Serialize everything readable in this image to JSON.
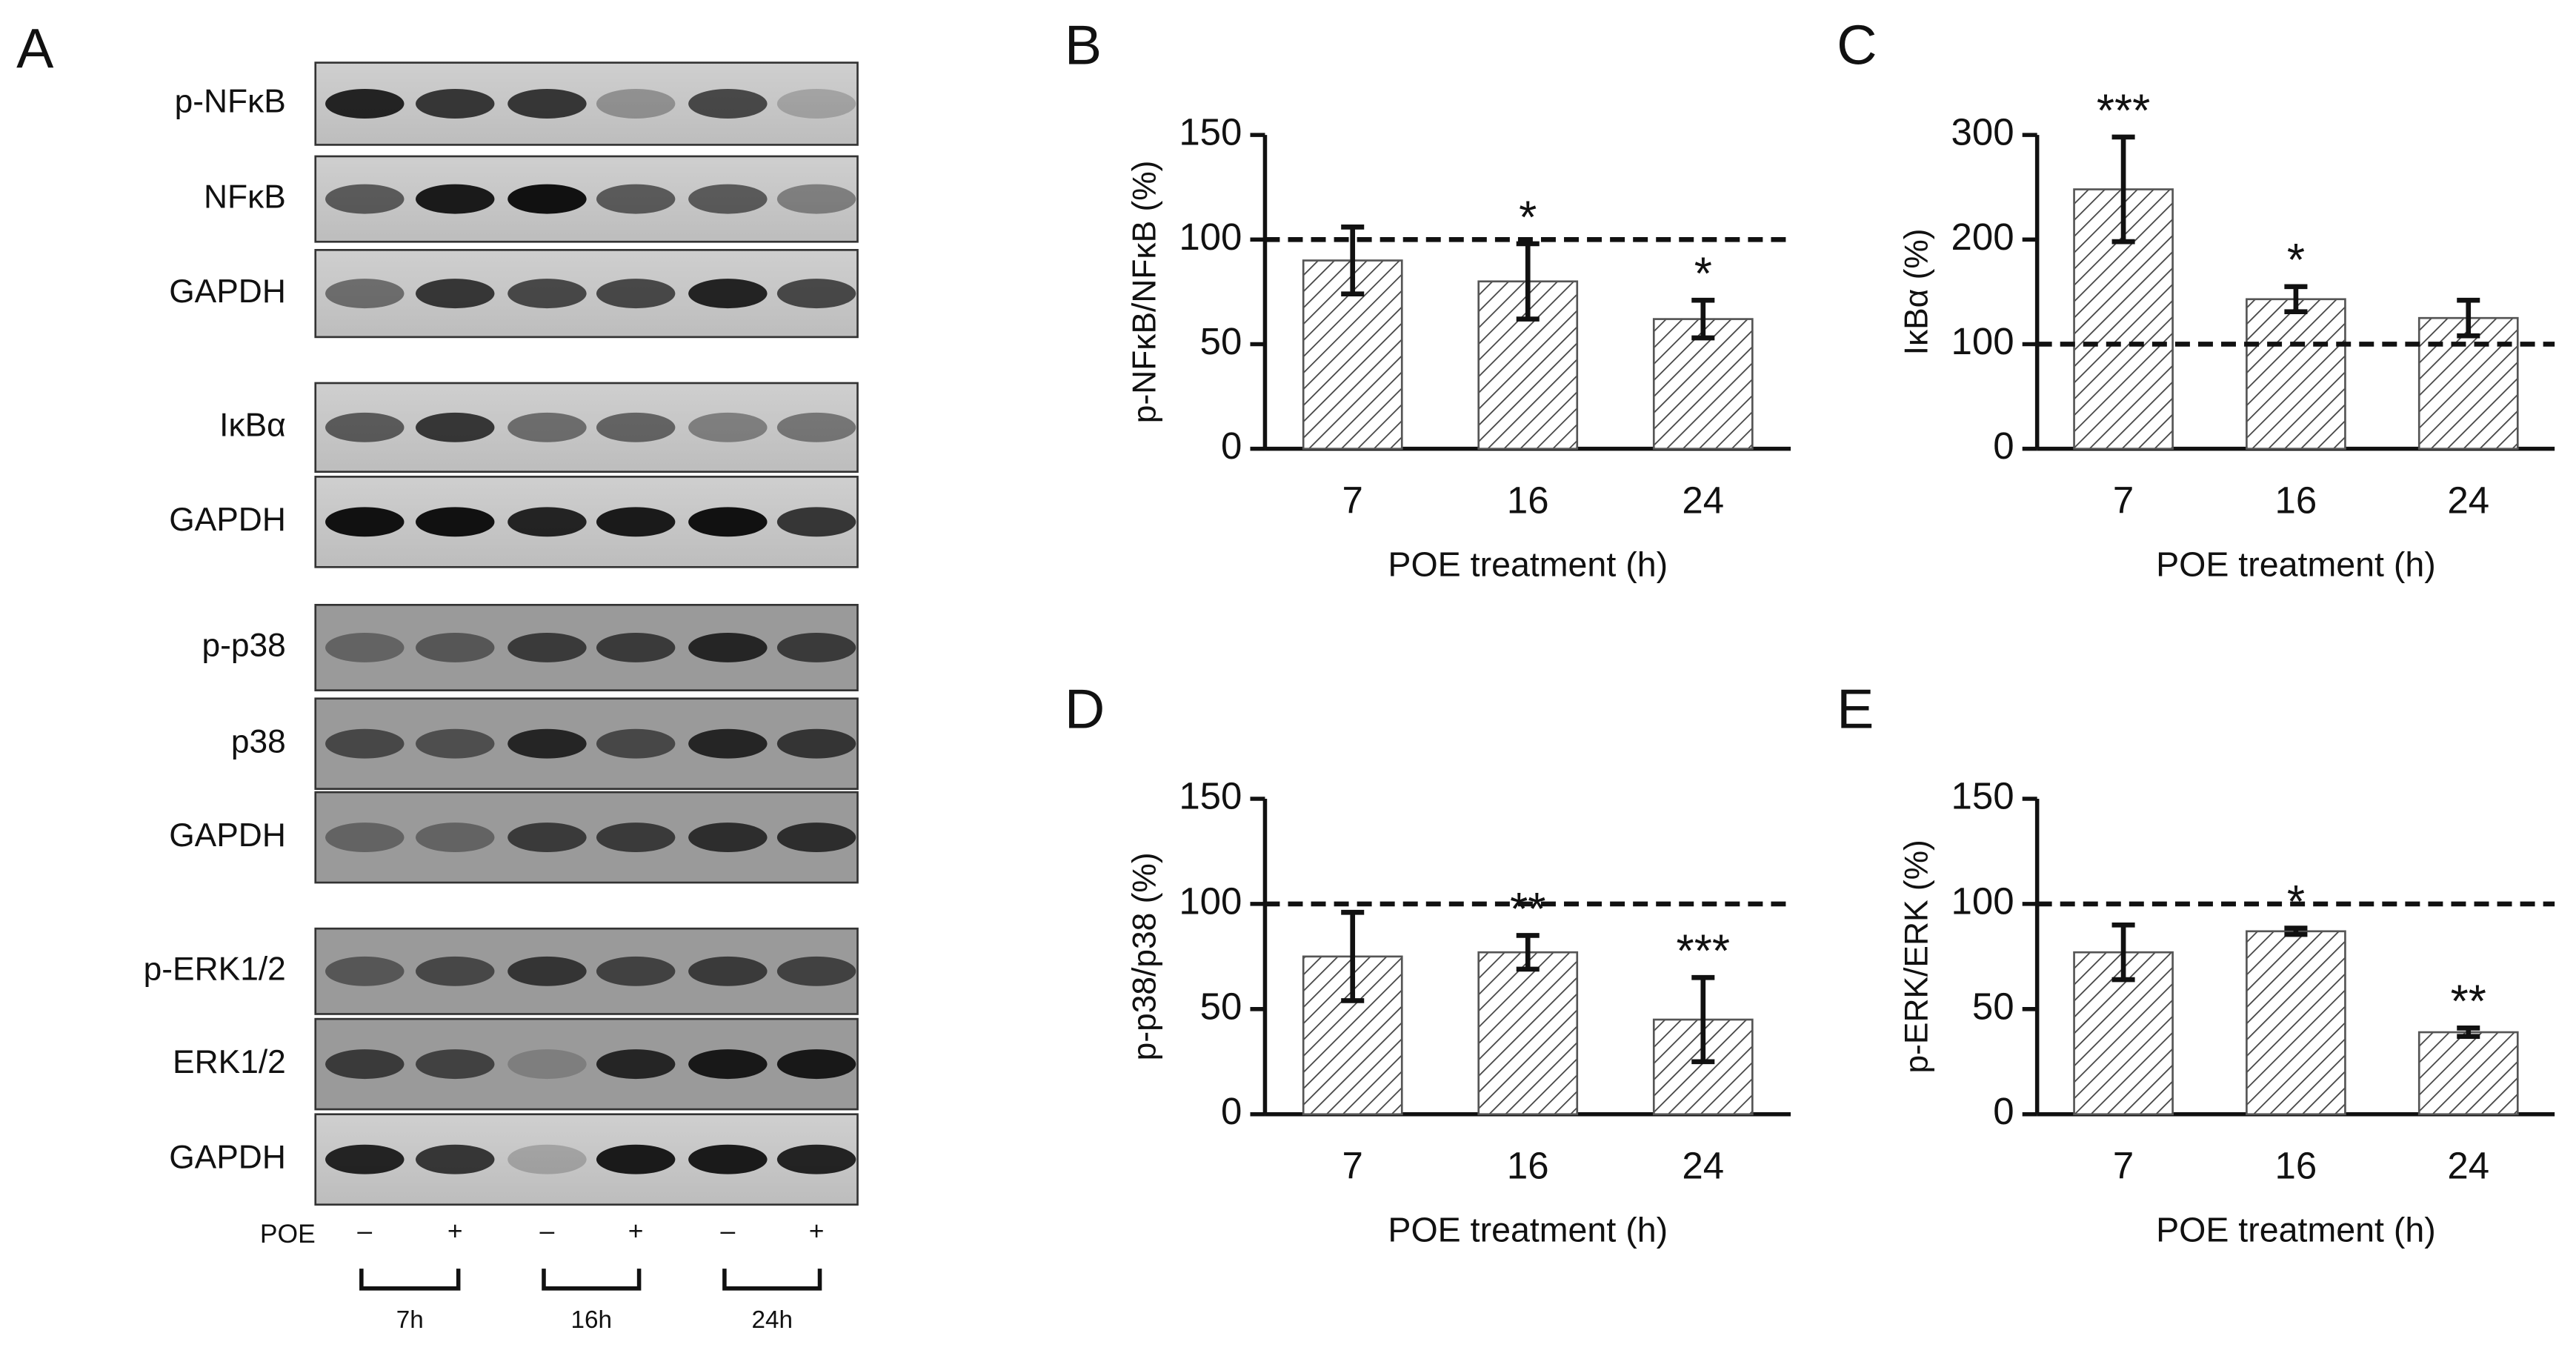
{
  "blot": {
    "panel": "A",
    "rows": [
      "p-NFκB",
      "NFκB",
      "GAPDH",
      "IκBα",
      "GAPDH",
      "p-p38",
      "p38",
      "GAPDH",
      "p-ERK1/2",
      "ERK1/2",
      "GAPDH"
    ],
    "treatment_label": "POE",
    "lanes": [
      "–",
      "+",
      "–",
      "+",
      "–",
      "+"
    ],
    "timepoints": [
      "7h",
      "16h",
      "24h"
    ]
  },
  "chart_data": [
    {
      "type": "bar",
      "panel": "B",
      "y_label": "p-NFκB/NFκB (%)",
      "x_label": "POE treatment (h)",
      "categories": [
        "7",
        "16",
        "24"
      ],
      "values": [
        90,
        80,
        62
      ],
      "errors": [
        16,
        18,
        9
      ],
      "significance": [
        null,
        "*",
        "*"
      ],
      "reference_line": 100,
      "ylim": [
        0,
        150
      ],
      "yticks": [
        0,
        50,
        100,
        150
      ]
    },
    {
      "type": "bar",
      "panel": "C",
      "y_label": "IκBα (%)",
      "x_label": "POE treatment (h)",
      "categories": [
        "7",
        "16",
        "24"
      ],
      "values": [
        248,
        143,
        125
      ],
      "errors": [
        50,
        12,
        17
      ],
      "significance": [
        "***",
        "*",
        null
      ],
      "reference_line": 100,
      "ylim": [
        0,
        300
      ],
      "yticks": [
        0,
        100,
        200,
        300
      ]
    },
    {
      "type": "bar",
      "panel": "D",
      "y_label": "p-p38/p38 (%)",
      "x_label": "POE treatment (h)",
      "categories": [
        "7",
        "16",
        "24"
      ],
      "values": [
        75,
        77,
        45
      ],
      "errors": [
        21,
        8,
        20
      ],
      "significance": [
        null,
        "**",
        "***"
      ],
      "reference_line": 100,
      "ylim": [
        0,
        150
      ],
      "yticks": [
        0,
        50,
        100,
        150
      ]
    },
    {
      "type": "bar",
      "panel": "E",
      "y_label": "p-ERK/ERK (%)",
      "x_label": "POE treatment (h)",
      "categories": [
        "7",
        "16",
        "24"
      ],
      "values": [
        77,
        87,
        39
      ],
      "errors": [
        13,
        1.5,
        2
      ],
      "significance": [
        null,
        "*",
        "**"
      ],
      "reference_line": 100,
      "ylim": [
        0,
        150
      ],
      "yticks": [
        0,
        50,
        100,
        150
      ]
    }
  ]
}
